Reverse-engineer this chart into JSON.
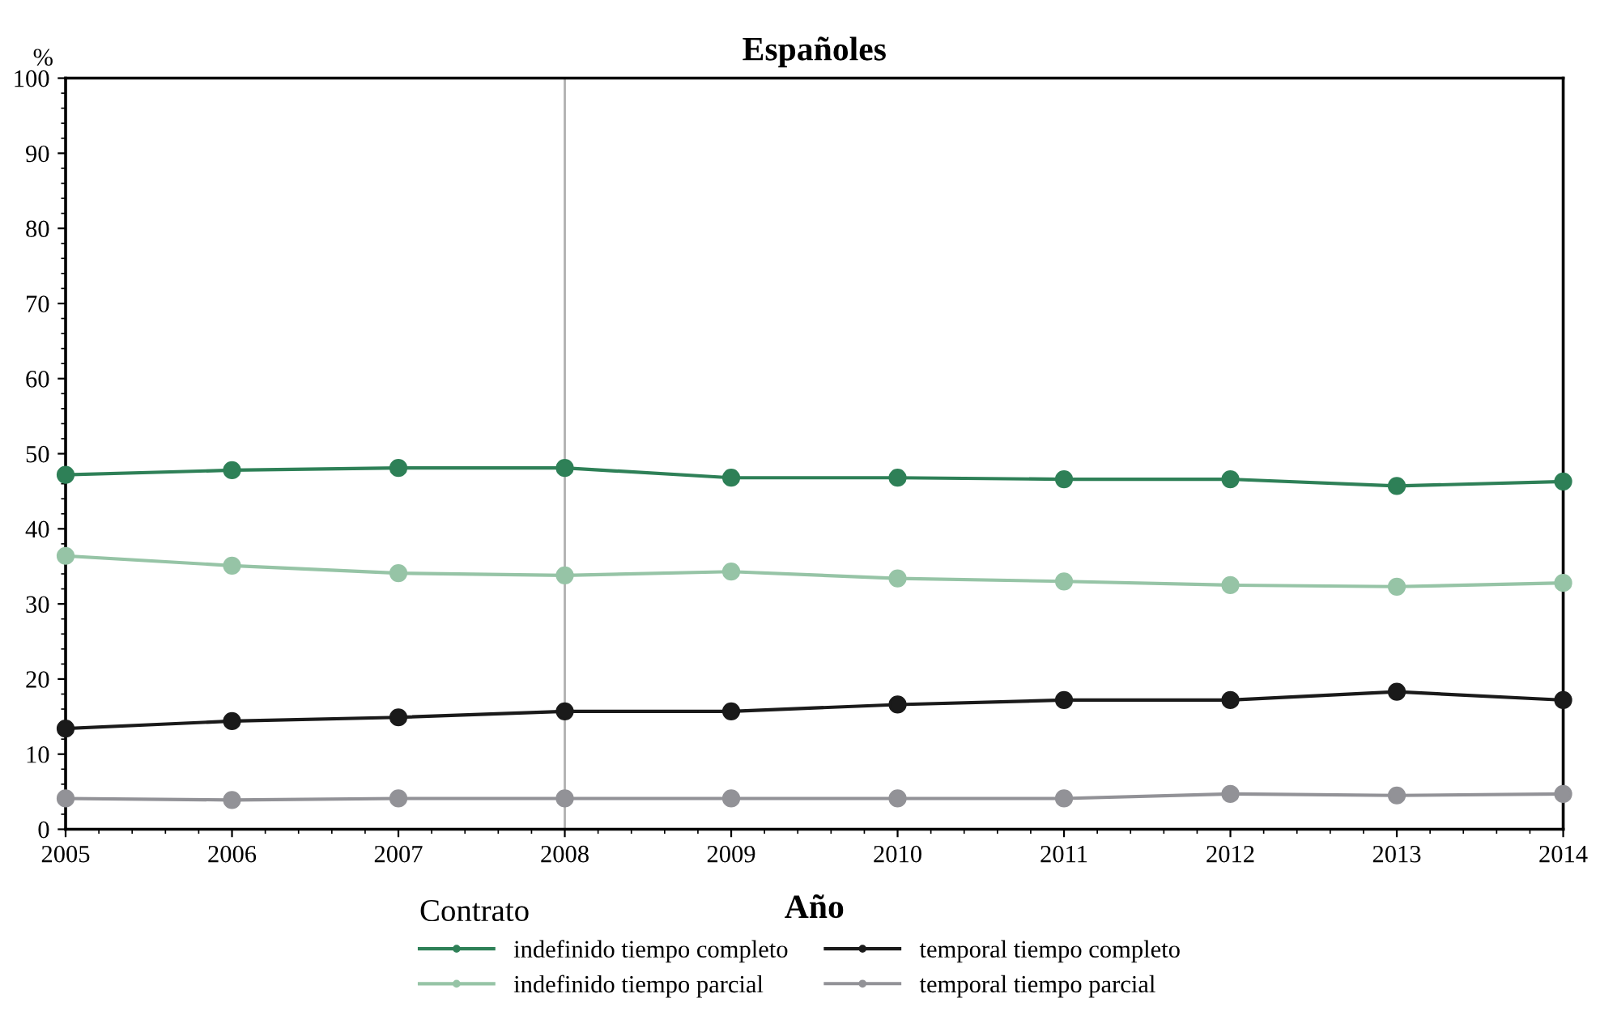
{
  "chart_data": {
    "type": "line",
    "title": "Españoles",
    "xlabel": "Año",
    "ylabel": "%",
    "legend_title": "Contrato",
    "legend": "bottom",
    "marker": "circle",
    "line_style": "solid",
    "grid": false,
    "x": [
      2005,
      2006,
      2007,
      2008,
      2009,
      2010,
      2011,
      2012,
      2013,
      2014
    ],
    "xlim": [
      2005,
      2014
    ],
    "xticks": [
      2005,
      2006,
      2007,
      2008,
      2009,
      2010,
      2011,
      2012,
      2013,
      2014
    ],
    "ylim": [
      0,
      100
    ],
    "yticks": [
      0,
      10,
      20,
      30,
      40,
      50,
      60,
      70,
      80,
      90,
      100
    ],
    "ref_lines": [
      {
        "axis": "x",
        "value": 2008,
        "color": "#b0b0b0"
      }
    ],
    "series": [
      {
        "name": "indefinido tiempo completo",
        "color": "#2e8057",
        "values": [
          47.2,
          47.8,
          48.1,
          48.1,
          46.8,
          46.8,
          46.6,
          46.6,
          45.7,
          46.3
        ]
      },
      {
        "name": "indefinido tiempo parcial",
        "color": "#96c4a6",
        "values": [
          36.4,
          35.1,
          34.1,
          33.8,
          34.3,
          33.4,
          33.0,
          32.5,
          32.3,
          32.8
        ]
      },
      {
        "name": "temporal tiempo completo",
        "color": "#1a1a1a",
        "values": [
          13.4,
          14.4,
          14.9,
          15.7,
          15.7,
          16.6,
          17.2,
          17.2,
          18.3,
          17.2
        ]
      },
      {
        "name": "temporal tiempo parcial",
        "color": "#929297",
        "values": [
          4.1,
          3.9,
          4.1,
          4.1,
          4.1,
          4.1,
          4.1,
          4.7,
          4.5,
          4.7
        ]
      }
    ]
  }
}
